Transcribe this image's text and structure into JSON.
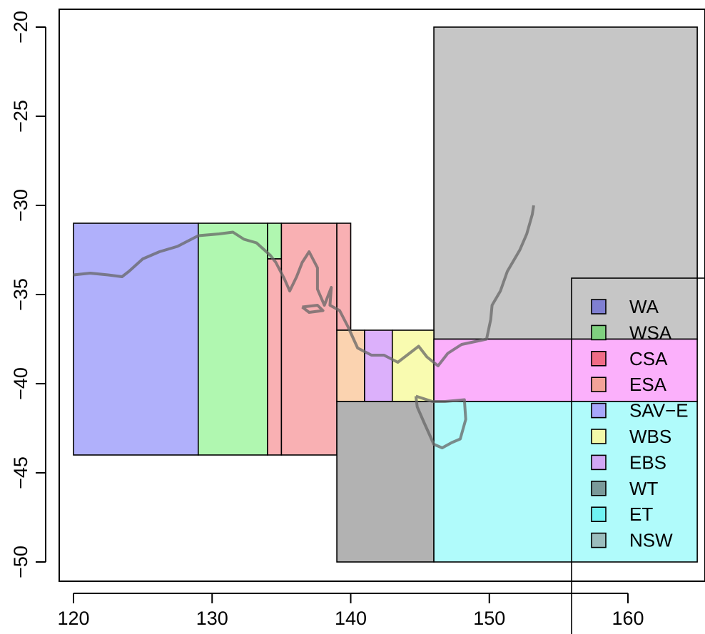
{
  "chart_data": {
    "type": "map",
    "title": "",
    "xlabel": "",
    "ylabel": "",
    "xlim": [
      119,
      165.3
    ],
    "ylim": [
      -51.2,
      -19
    ],
    "x_ticks": [
      120,
      130,
      140,
      150,
      160
    ],
    "y_ticks": [
      -20,
      -25,
      -30,
      -35,
      -40,
      -45,
      -50
    ],
    "x_tick_labels": [
      "120",
      "130",
      "140",
      "150",
      "160"
    ],
    "y_tick_labels": [
      "−20",
      "−25",
      "−30",
      "−35",
      "−40",
      "−45",
      "−50"
    ],
    "grid": false,
    "legend_position": "bottom-right",
    "regions": [
      {
        "name": "BG",
        "label": "",
        "lon": [
          146,
          165
        ],
        "lat": [
          -37.5,
          -20
        ],
        "color": "#c6c6c6"
      },
      {
        "name": "WA",
        "label": "WA",
        "lon": [
          120,
          129
        ],
        "lat": [
          -44,
          -31
        ],
        "color": "#b0b0fb"
      },
      {
        "name": "WSA",
        "label": "WSA",
        "lon": [
          129,
          134
        ],
        "lat": [
          -44,
          -31
        ],
        "color": "#b0f7b0"
      },
      {
        "name": "WSA2",
        "label": "",
        "lon": [
          134,
          135
        ],
        "lat": [
          -33,
          -31
        ],
        "color": "#b0f7b0"
      },
      {
        "name": "CSA",
        "label": "CSA",
        "lon": [
          134,
          135
        ],
        "lat": [
          -44,
          -33
        ],
        "color": "#f9b0b3"
      },
      {
        "name": "ESA",
        "label": "ESA",
        "lon": [
          135,
          139
        ],
        "lat": [
          -44,
          -31
        ],
        "color": "#f9b0b3"
      },
      {
        "name": "ESA2",
        "label": "",
        "lon": [
          139,
          140
        ],
        "lat": [
          -37,
          -31
        ],
        "color": "#f9b0b3"
      },
      {
        "name": "SAV-E",
        "label": "",
        "lon": [
          139,
          141
        ],
        "lat": [
          -41,
          -37
        ],
        "color": "#fbd3b0"
      },
      {
        "name": "EBS",
        "label": "",
        "lon": [
          141,
          143
        ],
        "lat": [
          -41,
          -37
        ],
        "color": "#dcb0fb"
      },
      {
        "name": "WBS",
        "label": "",
        "lon": [
          143,
          146
        ],
        "lat": [
          -41,
          -37
        ],
        "color": "#f9fbb0"
      },
      {
        "name": "ET-N",
        "label": "",
        "lon": [
          146,
          165
        ],
        "lat": [
          -41,
          -37.5
        ],
        "color": "#fbb0fb"
      },
      {
        "name": "WT",
        "label": "",
        "lon": [
          139,
          146
        ],
        "lat": [
          -50,
          -41
        ],
        "color": "#b2b2b2"
      },
      {
        "name": "ET",
        "label": "",
        "lon": [
          146,
          165
        ],
        "lat": [
          -50,
          -41
        ],
        "color": "#b0fbfb"
      }
    ],
    "coastline": [
      [
        [
          120.0,
          -33.9
        ],
        [
          121.2,
          -33.8
        ],
        [
          122.5,
          -33.9
        ],
        [
          123.5,
          -34.0
        ],
        [
          124.0,
          -33.7
        ],
        [
          125.0,
          -33.0
        ],
        [
          126.2,
          -32.6
        ],
        [
          127.5,
          -32.3
        ],
        [
          129.0,
          -31.7
        ],
        [
          130.5,
          -31.6
        ],
        [
          131.5,
          -31.5
        ],
        [
          132.3,
          -31.9
        ],
        [
          133.2,
          -32.1
        ],
        [
          134.2,
          -32.8
        ],
        [
          134.6,
          -33.2
        ],
        [
          135.2,
          -34.1
        ],
        [
          135.6,
          -34.8
        ],
        [
          136.1,
          -34.0
        ],
        [
          136.5,
          -33.2
        ],
        [
          137.0,
          -32.6
        ],
        [
          137.6,
          -33.5
        ],
        [
          137.6,
          -34.7
        ],
        [
          138.1,
          -35.6
        ],
        [
          138.6,
          -34.6
        ],
        [
          138.5,
          -35.6
        ],
        [
          139.2,
          -35.9
        ],
        [
          139.8,
          -36.8
        ],
        [
          140.5,
          -38.0
        ],
        [
          141.5,
          -38.4
        ],
        [
          142.4,
          -38.4
        ],
        [
          143.4,
          -38.8
        ],
        [
          144.4,
          -38.2
        ],
        [
          144.9,
          -37.9
        ],
        [
          145.5,
          -38.5
        ],
        [
          146.3,
          -39.0
        ],
        [
          147.0,
          -38.3
        ],
        [
          148.0,
          -37.8
        ],
        [
          149.8,
          -37.5
        ],
        [
          150.1,
          -36.4
        ],
        [
          150.2,
          -35.6
        ],
        [
          150.8,
          -34.8
        ],
        [
          151.3,
          -33.7
        ],
        [
          152.2,
          -32.5
        ],
        [
          152.7,
          -31.6
        ],
        [
          153.1,
          -30.5
        ],
        [
          153.2,
          -30.0
        ]
      ],
      [
        [
          144.7,
          -40.7
        ],
        [
          145.9,
          -41.0
        ],
        [
          146.8,
          -41.0
        ],
        [
          148.2,
          -40.9
        ],
        [
          148.3,
          -42.0
        ],
        [
          147.9,
          -43.1
        ],
        [
          147.3,
          -43.3
        ],
        [
          146.6,
          -43.6
        ],
        [
          146.0,
          -43.4
        ],
        [
          145.3,
          -42.2
        ],
        [
          144.8,
          -41.3
        ],
        [
          144.7,
          -40.7
        ]
      ],
      [
        [
          136.5,
          -35.7
        ],
        [
          137.6,
          -35.6
        ],
        [
          138.0,
          -35.9
        ],
        [
          137.0,
          -36.0
        ],
        [
          136.5,
          -35.7
        ]
      ]
    ],
    "coastline_color": "#666666",
    "legend": [
      {
        "label": "WA",
        "color": "#7f7fd1"
      },
      {
        "label": "WSA",
        "color": "#7fd17f"
      },
      {
        "label": "CSA",
        "color": "#f06b86"
      },
      {
        "label": "ESA",
        "color": "#f3a298"
      },
      {
        "label": "SAV−E",
        "color": "#a7a7fb"
      },
      {
        "label": "WBS",
        "color": "#f1f9a9"
      },
      {
        "label": "EBS",
        "color": "#d1a7f5"
      },
      {
        "label": "WT",
        "color": "#7a9a9a"
      },
      {
        "label": "ET",
        "color": "#6ff3f3"
      },
      {
        "label": "NSW",
        "color": "#9bbdbd"
      }
    ]
  }
}
